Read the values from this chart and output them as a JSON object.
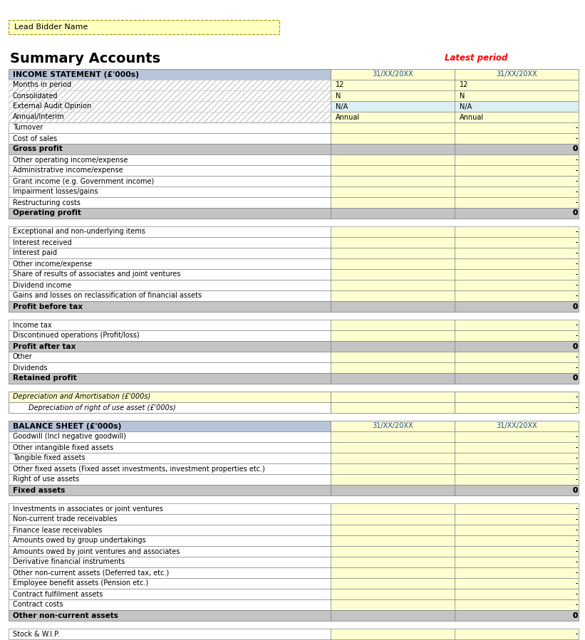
{
  "title": "Summary Accounts",
  "latest_period_label": "Latest period",
  "lead_bidder_label": "Lead Bidder Name",
  "sections": [
    {
      "type": "section_header",
      "label": "INCOME STATEMENT (£'000s)",
      "col1": "31/XX/20XX",
      "col2": "31/XX/20XX"
    },
    {
      "type": "row",
      "label": "Months in period",
      "col1": "12",
      "col2": "12",
      "row_bg": "hatch",
      "col_bg": "yellow_light",
      "val_align": "left"
    },
    {
      "type": "row",
      "label": "Consolidated",
      "col1": "N",
      "col2": "N",
      "row_bg": "hatch",
      "col_bg": "yellow_light",
      "val_align": "left",
      "has_corner": true
    },
    {
      "type": "row",
      "label": "External Audit Opinion",
      "col1": "N/A",
      "col2": "N/A",
      "row_bg": "hatch",
      "col_bg": "blue_light",
      "val_align": "left"
    },
    {
      "type": "row",
      "label": "Annual/Interim",
      "col1": "Annual",
      "col2": "Annual",
      "row_bg": "hatch",
      "col_bg": "yellow_light",
      "val_align": "left"
    },
    {
      "type": "row",
      "label": "Turnover",
      "col1": "-",
      "col2": "-",
      "row_bg": "white",
      "col_bg": "yellow",
      "val_align": "right"
    },
    {
      "type": "row",
      "label": "Cost of sales",
      "col1": "-",
      "col2": "-",
      "row_bg": "white",
      "col_bg": "yellow",
      "val_align": "right"
    },
    {
      "type": "bold_row",
      "label": "Gross profit",
      "col1": "0",
      "col2": "0",
      "row_bg": "gray",
      "col_bg": "gray",
      "val_align": "right"
    },
    {
      "type": "row",
      "label": "Other operating income/expense",
      "col1": "-",
      "col2": "-",
      "row_bg": "white",
      "col_bg": "yellow",
      "val_align": "right"
    },
    {
      "type": "row",
      "label": "Administrative income/expense",
      "col1": "-",
      "col2": "-",
      "row_bg": "white",
      "col_bg": "yellow",
      "val_align": "right"
    },
    {
      "type": "row",
      "label": "Grant income (e.g. Government income)",
      "col1": "-",
      "col2": "-",
      "row_bg": "white",
      "col_bg": "yellow",
      "val_align": "right"
    },
    {
      "type": "row",
      "label": "Impairment losses/gains",
      "col1": "-",
      "col2": "-",
      "row_bg": "white",
      "col_bg": "yellow",
      "val_align": "right"
    },
    {
      "type": "row",
      "label": "Restructuring costs",
      "col1": "-",
      "col2": "-",
      "row_bg": "white",
      "col_bg": "yellow",
      "val_align": "right"
    },
    {
      "type": "bold_row",
      "label": "Operating profit",
      "col1": "0",
      "col2": "0",
      "row_bg": "gray",
      "col_bg": "gray",
      "val_align": "right"
    },
    {
      "type": "spacer"
    },
    {
      "type": "row",
      "label": "Exceptional and non-underlying items",
      "col1": "-",
      "col2": "-",
      "row_bg": "white",
      "col_bg": "yellow",
      "val_align": "right"
    },
    {
      "type": "row",
      "label": "Interest received",
      "col1": "-",
      "col2": "-",
      "row_bg": "white",
      "col_bg": "yellow",
      "val_align": "right"
    },
    {
      "type": "row",
      "label": "Interest paid",
      "col1": "-",
      "col2": "-",
      "row_bg": "white",
      "col_bg": "yellow",
      "val_align": "right"
    },
    {
      "type": "row",
      "label": "Other income/expense",
      "col1": "-",
      "col2": "-",
      "row_bg": "white",
      "col_bg": "yellow",
      "val_align": "right"
    },
    {
      "type": "row",
      "label": "Share of results of associates and joint ventures",
      "col1": "-",
      "col2": "-",
      "row_bg": "white",
      "col_bg": "yellow",
      "val_align": "right"
    },
    {
      "type": "row",
      "label": "Dividend income",
      "col1": "-",
      "col2": "-",
      "row_bg": "white",
      "col_bg": "yellow",
      "val_align": "right"
    },
    {
      "type": "row",
      "label": "Gains and losses on reclassification of financial assets",
      "col1": "-",
      "col2": "-",
      "row_bg": "white",
      "col_bg": "yellow",
      "val_align": "right"
    },
    {
      "type": "bold_row",
      "label": "Profit before tax",
      "col1": "0",
      "col2": "0",
      "row_bg": "gray",
      "col_bg": "gray",
      "val_align": "right"
    },
    {
      "type": "spacer"
    },
    {
      "type": "row",
      "label": "Income tax",
      "col1": "-",
      "col2": "-",
      "row_bg": "white",
      "col_bg": "yellow",
      "val_align": "right"
    },
    {
      "type": "row",
      "label": "Discontinued operations (Profit/loss)",
      "col1": "-",
      "col2": "-",
      "row_bg": "white",
      "col_bg": "yellow",
      "val_align": "right"
    },
    {
      "type": "bold_row",
      "label": "Profit after tax",
      "col1": "0",
      "col2": "0",
      "row_bg": "gray",
      "col_bg": "gray",
      "val_align": "right"
    },
    {
      "type": "row",
      "label": "Other",
      "col1": "-",
      "col2": "-",
      "row_bg": "white",
      "col_bg": "yellow",
      "val_align": "right"
    },
    {
      "type": "row",
      "label": "Dividends",
      "col1": "-",
      "col2": "-",
      "row_bg": "white",
      "col_bg": "yellow",
      "val_align": "right"
    },
    {
      "type": "bold_row",
      "label": "Retained profit",
      "col1": "0",
      "col2": "0",
      "row_bg": "gray",
      "col_bg": "gray",
      "val_align": "right"
    },
    {
      "type": "spacer"
    },
    {
      "type": "italic_row",
      "label": "Depreciation and Amortisation (£'000s)",
      "col1": "-",
      "col2": "-",
      "row_bg": "yellow",
      "col_bg": "yellow",
      "val_align": "right"
    },
    {
      "type": "italic_row_indent",
      "label": "Depreciation of right of use asset (£'000s)",
      "col1": "-",
      "col2": "-",
      "row_bg": "white",
      "col_bg": "yellow",
      "val_align": "right"
    },
    {
      "type": "spacer"
    },
    {
      "type": "section_header",
      "label": "BALANCE SHEET (£'000s)",
      "col1": "31/XX/20XX",
      "col2": "31/XX/20XX"
    },
    {
      "type": "row",
      "label": "Goodwill (Incl negative goodwill)",
      "col1": "-",
      "col2": "-",
      "row_bg": "white",
      "col_bg": "yellow",
      "val_align": "right"
    },
    {
      "type": "row",
      "label": "Other intangible fixed assets",
      "col1": "-",
      "col2": "-",
      "row_bg": "white",
      "col_bg": "yellow",
      "val_align": "right"
    },
    {
      "type": "row",
      "label": "Tangible fixed assets",
      "col1": "-",
      "col2": "-",
      "row_bg": "white",
      "col_bg": "yellow",
      "val_align": "right"
    },
    {
      "type": "row",
      "label": "Other fixed assets (Fixed asset investments, investment properties etc.)",
      "col1": "-",
      "col2": "-",
      "row_bg": "white",
      "col_bg": "yellow",
      "val_align": "right"
    },
    {
      "type": "row",
      "label": "Right of use assets",
      "col1": "-",
      "col2": "-",
      "row_bg": "white",
      "col_bg": "yellow",
      "val_align": "right"
    },
    {
      "type": "bold_row",
      "label": "Fixed assets",
      "col1": "0",
      "col2": "0",
      "row_bg": "gray",
      "col_bg": "gray",
      "val_align": "right"
    },
    {
      "type": "spacer"
    },
    {
      "type": "row",
      "label": "Investments in associates or joint ventures",
      "col1": "-",
      "col2": "-",
      "row_bg": "white",
      "col_bg": "yellow",
      "val_align": "right"
    },
    {
      "type": "row",
      "label": "Non-current trade receivables",
      "col1": "-",
      "col2": "-",
      "row_bg": "white",
      "col_bg": "yellow",
      "val_align": "right"
    },
    {
      "type": "row",
      "label": "Finance lease receivables",
      "col1": "-",
      "col2": "-",
      "row_bg": "white",
      "col_bg": "yellow",
      "val_align": "right"
    },
    {
      "type": "row",
      "label": "Amounts owed by group undertakings",
      "col1": "-",
      "col2": "-",
      "row_bg": "white",
      "col_bg": "yellow",
      "val_align": "right"
    },
    {
      "type": "row",
      "label": "Amounts owed by joint ventures and associates",
      "col1": "-",
      "col2": "-",
      "row_bg": "white",
      "col_bg": "yellow",
      "val_align": "right"
    },
    {
      "type": "row",
      "label": "Derivative financial instruments",
      "col1": "-",
      "col2": "-",
      "row_bg": "white",
      "col_bg": "yellow",
      "val_align": "right"
    },
    {
      "type": "row",
      "label": "Other non-current assets (Deferred tax, etc.)",
      "col1": "-",
      "col2": "-",
      "row_bg": "white",
      "col_bg": "yellow",
      "val_align": "right"
    },
    {
      "type": "row",
      "label": "Employee benefit assets (Pension etc.)",
      "col1": "-",
      "col2": "-",
      "row_bg": "white",
      "col_bg": "yellow",
      "val_align": "right"
    },
    {
      "type": "row",
      "label": "Contract fulfilment assets",
      "col1": "-",
      "col2": "-",
      "row_bg": "white",
      "col_bg": "yellow",
      "val_align": "right"
    },
    {
      "type": "row",
      "label": "Contract costs",
      "col1": "-",
      "col2": "-",
      "row_bg": "white",
      "col_bg": "yellow",
      "val_align": "right"
    },
    {
      "type": "bold_row",
      "label": "Other non-current assets",
      "col1": "0",
      "col2": "0",
      "row_bg": "gray",
      "col_bg": "gray",
      "val_align": "right"
    },
    {
      "type": "spacer"
    },
    {
      "type": "row",
      "label": "Stock & W.I.P.",
      "col1": "-",
      "col2": "-",
      "row_bg": "white",
      "col_bg": "yellow",
      "val_align": "right"
    }
  ],
  "colors": {
    "white": "#ffffff",
    "yellow": "#feffd0",
    "yellow_light": "#feffd0",
    "blue_light": "#daeef3",
    "gray": "#c8c8c8",
    "gray_dark": "#a8a8a8",
    "header_bg": "#b8c4d8",
    "hatch_bg": "#ffffff",
    "border": "#999999",
    "border_dashed": "#aaaaaa",
    "text_dark": "#000000",
    "text_blue": "#1f4e99",
    "text_red": "#ff0000",
    "bidder_bg": "#ffffc0",
    "bidder_border": "#999900"
  }
}
